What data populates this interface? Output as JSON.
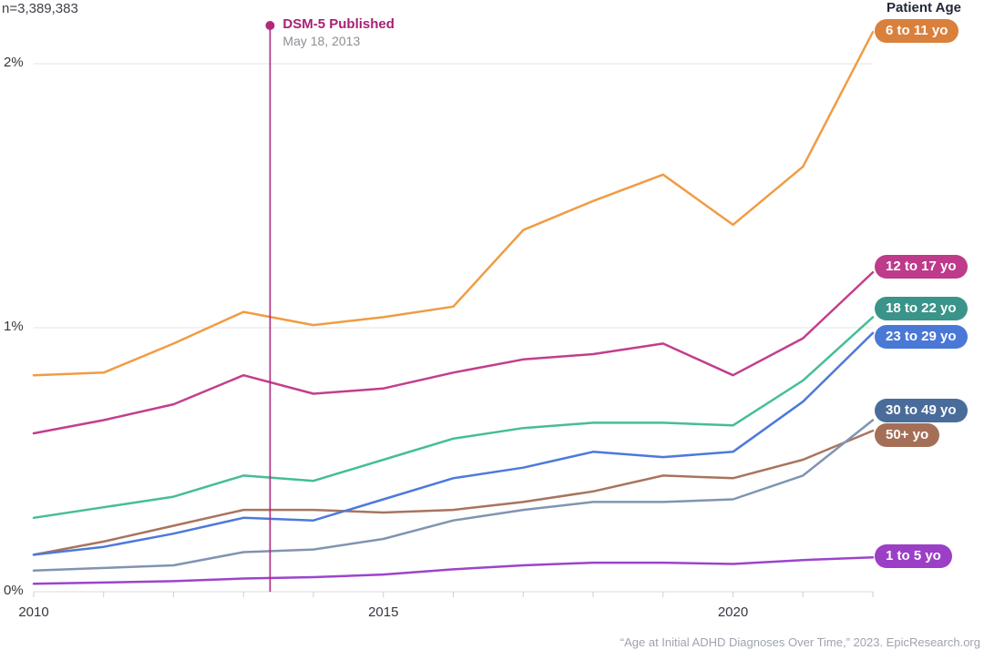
{
  "meta": {
    "sample_size": "n=3,389,383"
  },
  "legend": {
    "title": "Patient Age"
  },
  "annotation": {
    "title": "DSM-5 Published",
    "subtitle": "May 18, 2013",
    "x_value": 2013.38,
    "color": "#B1297B",
    "title_color": "#A81F73"
  },
  "footer": {
    "attribution": "“Age at Initial ADHD Diagnoses Over Time,” 2023. EpicResearch.org"
  },
  "axes": {
    "y_ticks": [
      {
        "label": "2%",
        "value": 2
      },
      {
        "label": "1%",
        "value": 1
      },
      {
        "label": "0%",
        "value": 0
      }
    ],
    "x_ticks": [
      {
        "label": "2010",
        "value": 2010
      },
      {
        "label": "2015",
        "value": 2015
      },
      {
        "label": "2020",
        "value": 2020
      }
    ]
  },
  "chart_data": {
    "type": "line",
    "title": "Age at Initial ADHD Diagnoses Over Time",
    "x": [
      2010,
      2011,
      2012,
      2013,
      2014,
      2015,
      2016,
      2017,
      2018,
      2019,
      2020,
      2021,
      2022
    ],
    "xlim": [
      2010,
      2022
    ],
    "ylim": [
      0,
      2.2
    ],
    "y_unit": "%",
    "grid": "horizontal",
    "legend_position": "right",
    "grid_color": "#E4E5E9",
    "axis_color": "#D9DBE0",
    "tick_color": "#CCCED6",
    "series": [
      {
        "name": "6 to 11 yo",
        "line_color": "#F09C43",
        "pill_color": "#D9803C",
        "values": [
          0.82,
          0.83,
          0.94,
          1.06,
          1.01,
          1.04,
          1.08,
          1.37,
          1.48,
          1.58,
          1.39,
          1.61,
          2.12
        ]
      },
      {
        "name": "12 to 17 yo",
        "line_color": "#C23E8D",
        "pill_color": "#BE3A8A",
        "values": [
          0.6,
          0.65,
          0.71,
          0.82,
          0.75,
          0.77,
          0.83,
          0.88,
          0.9,
          0.94,
          0.82,
          0.96,
          1.21
        ]
      },
      {
        "name": "18 to 22 yo",
        "line_color": "#45BD99",
        "pill_color": "#3A9489",
        "values": [
          0.28,
          0.32,
          0.36,
          0.44,
          0.42,
          0.5,
          0.58,
          0.62,
          0.64,
          0.64,
          0.63,
          0.8,
          1.04
        ]
      },
      {
        "name": "23 to 29 yo",
        "line_color": "#4D79DD",
        "pill_color": "#4A78D6",
        "values": [
          0.14,
          0.17,
          0.22,
          0.28,
          0.27,
          0.35,
          0.43,
          0.47,
          0.53,
          0.51,
          0.53,
          0.72,
          0.98
        ]
      },
      {
        "name": "30 to 49 yo",
        "line_color": "#8094B2",
        "pill_color": "#4A6C9B",
        "values": [
          0.08,
          0.09,
          0.1,
          0.15,
          0.16,
          0.2,
          0.27,
          0.31,
          0.34,
          0.34,
          0.35,
          0.44,
          0.65
        ]
      },
      {
        "name": "50+ yo",
        "line_color": "#A8745E",
        "pill_color": "#A56F57",
        "values": [
          0.14,
          0.19,
          0.25,
          0.31,
          0.31,
          0.3,
          0.31,
          0.34,
          0.38,
          0.44,
          0.43,
          0.5,
          0.61
        ]
      },
      {
        "name": "1 to 5 yo",
        "line_color": "#9C44CC",
        "pill_color": "#9B3FC6",
        "values": [
          0.03,
          0.035,
          0.04,
          0.05,
          0.055,
          0.065,
          0.085,
          0.1,
          0.11,
          0.11,
          0.105,
          0.12,
          0.13
        ]
      }
    ]
  }
}
